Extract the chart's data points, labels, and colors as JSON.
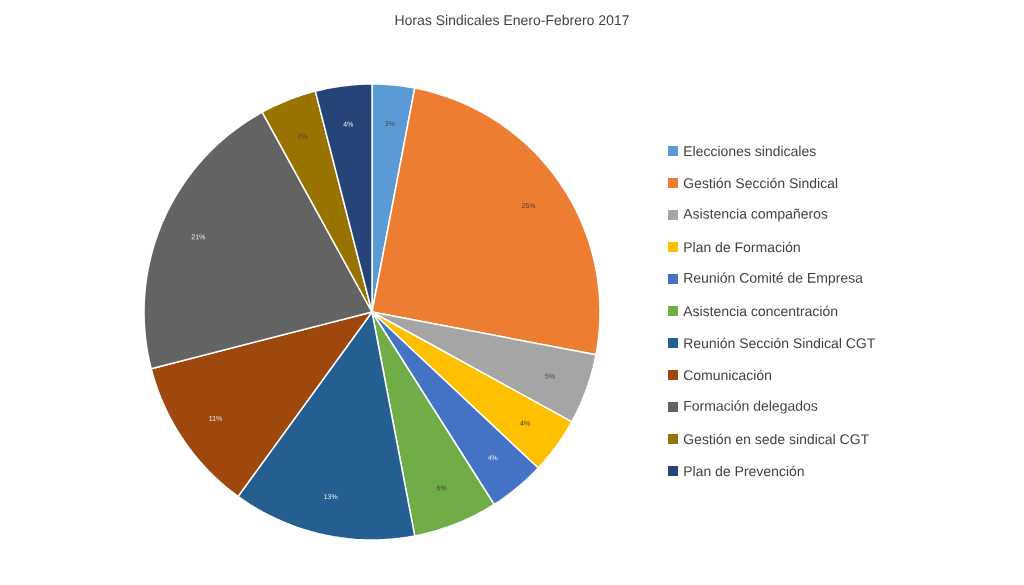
{
  "chart_data": {
    "type": "pie",
    "title": "Horas Sindicales Enero-Febrero 2017",
    "categories": [
      "Elecciones sindicales",
      "Gestión Sección Sindical",
      "Asistencia compañeros",
      "Plan de Formación",
      "Reunión Comité de Empresa",
      "Asistencia concentración",
      "Reunión Sección Sindical CGT",
      "Comunicación",
      "Formación delegados",
      "Gestión en sede sindical CGT",
      "Plan de Prevención"
    ],
    "values": [
      3,
      25,
      5,
      4,
      4,
      6,
      13,
      11,
      21,
      4,
      4
    ],
    "value_labels": [
      "3%",
      "25%",
      "5%",
      "4%",
      "4%",
      "6%",
      "13%",
      "11%",
      "21%",
      "4%",
      "4%"
    ],
    "colors": [
      "#5b9bd5",
      "#ed7d31",
      "#a5a5a5",
      "#ffc000",
      "#4472c4",
      "#70ad47",
      "#255e91",
      "#9e480e",
      "#636363",
      "#997300",
      "#264478"
    ],
    "legend": "right"
  }
}
